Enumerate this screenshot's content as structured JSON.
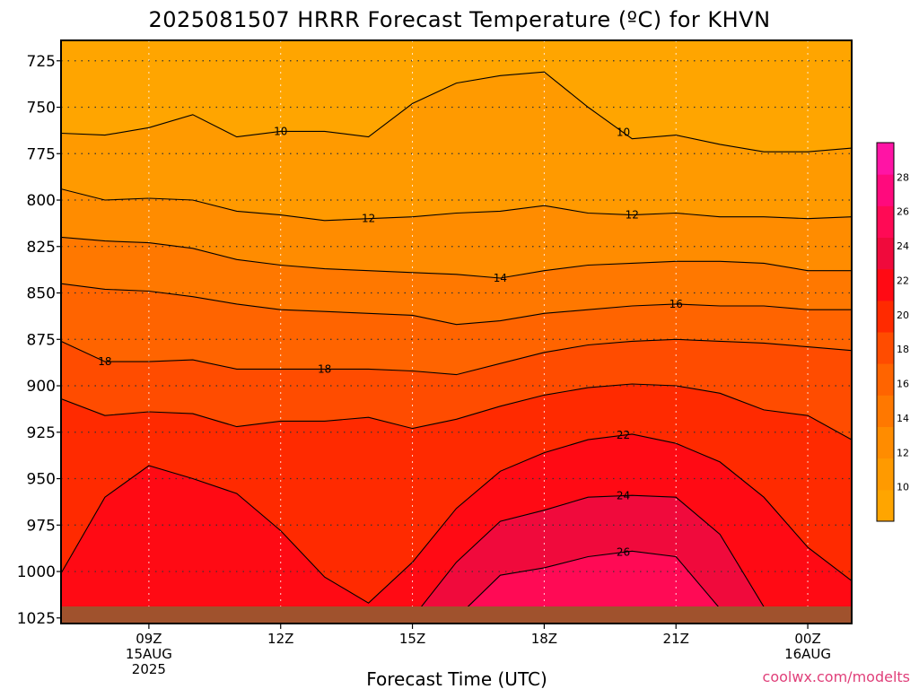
{
  "chart_data": {
    "type": "heatmap",
    "title": "2025081507 HRRR Forecast Temperature (ºC) for KHVN",
    "xlabel": "Forecast Time (UTC)",
    "ylabel": "",
    "credit": "coolwx.com/modelts",
    "x_ticks": [
      {
        "hour": 9,
        "lines": [
          "09Z",
          "15AUG",
          "2025"
        ]
      },
      {
        "hour": 12,
        "lines": [
          "12Z"
        ]
      },
      {
        "hour": 15,
        "lines": [
          "15Z"
        ]
      },
      {
        "hour": 18,
        "lines": [
          "18Z"
        ]
      },
      {
        "hour": 21,
        "lines": [
          "21Z"
        ]
      },
      {
        "hour": 24,
        "lines": [
          "00Z",
          "16AUG"
        ]
      }
    ],
    "xlim_hours": [
      7,
      25
    ],
    "y_ticks": [
      725,
      750,
      775,
      800,
      825,
      850,
      875,
      900,
      925,
      950,
      975,
      1000,
      1025
    ],
    "ylim_hPa": [
      714,
      1028
    ],
    "grid": true,
    "colorbar": {
      "ticks": [
        10,
        12,
        14,
        16,
        18,
        20,
        22,
        24,
        26,
        28
      ],
      "bounds": [
        8,
        30
      ],
      "step": 2,
      "colors": [
        "#ffa500",
        "#ff9a00",
        "#ff8c00",
        "#ff7800",
        "#ff6400",
        "#ff4c00",
        "#ff2a00",
        "#ff0a14",
        "#f00a3c",
        "#ff0a55",
        "#ff0a7d",
        "#ff14a5"
      ]
    },
    "ground_color": "#a0522d",
    "x_hours": [
      7,
      8,
      9,
      10,
      11,
      12,
      13,
      14,
      15,
      16,
      17,
      18,
      19,
      20,
      21,
      22,
      23,
      24,
      25
    ],
    "isotherms": [
      {
        "temp": 10,
        "pressure": [
          764,
          765,
          761,
          754,
          766,
          763,
          763,
          766,
          748,
          737,
          733,
          731,
          750,
          767,
          765,
          770,
          774,
          774,
          772
        ],
        "labels": [
          {
            "hour": 12,
            "text": "10"
          },
          {
            "hour": 19.8,
            "text": "10"
          }
        ]
      },
      {
        "temp": 12,
        "pressure": [
          794,
          800,
          799,
          800,
          806,
          808,
          811,
          810,
          809,
          807,
          806,
          803,
          807,
          808,
          807,
          809,
          809,
          810,
          809
        ],
        "labels": [
          {
            "hour": 14,
            "text": "12"
          },
          {
            "hour": 20,
            "text": "12"
          }
        ]
      },
      {
        "temp": 14,
        "pressure": [
          820,
          822,
          823,
          826,
          832,
          835,
          837,
          838,
          839,
          840,
          842,
          838,
          835,
          834,
          833,
          833,
          834,
          838,
          838
        ],
        "labels": [
          {
            "hour": 17,
            "text": "14"
          }
        ]
      },
      {
        "temp": 16,
        "pressure": [
          845,
          848,
          849,
          852,
          856,
          859,
          860,
          861,
          862,
          867,
          865,
          861,
          859,
          857,
          856,
          857,
          857,
          859,
          859
        ],
        "labels": [
          {
            "hour": 21,
            "text": "16"
          }
        ]
      },
      {
        "temp": 18,
        "pressure": [
          876,
          887,
          887,
          886,
          891,
          891,
          891,
          891,
          892,
          894,
          888,
          882,
          878,
          876,
          875,
          876,
          877,
          879,
          881
        ],
        "labels": [
          {
            "hour": 8,
            "text": "18"
          },
          {
            "hour": 13,
            "text": "18"
          }
        ]
      },
      {
        "temp": 20,
        "pressure": [
          907,
          916,
          914,
          915,
          922,
          919,
          919,
          917,
          923,
          918,
          911,
          905,
          901,
          899,
          900,
          904,
          913,
          916,
          929
        ],
        "labels": []
      },
      {
        "temp": 22,
        "pressure": [
          1001,
          960,
          943,
          950,
          958,
          978,
          1003,
          1017,
          995,
          966,
          946,
          936,
          929,
          926,
          931,
          941,
          960,
          987,
          1005
        ],
        "labels": [
          {
            "hour": 19.8,
            "text": "22"
          }
        ]
      },
      {
        "temp": 24,
        "pressure": [
          null,
          null,
          null,
          null,
          null,
          1025,
          1025,
          1025,
          1025,
          995,
          973,
          967,
          960,
          959,
          960,
          980,
          1019,
          1025,
          1025
        ],
        "labels": [
          {
            "hour": 19.8,
            "text": "24"
          }
        ]
      },
      {
        "temp": 26,
        "pressure": [
          null,
          null,
          null,
          null,
          null,
          null,
          null,
          null,
          null,
          1025,
          1002,
          998,
          992,
          989,
          992,
          1020,
          1025,
          null,
          null
        ],
        "labels": [
          {
            "hour": 19.8,
            "text": "26"
          }
        ]
      },
      {
        "temp": 28,
        "pressure": [
          null,
          null,
          null,
          null,
          null,
          null,
          null,
          null,
          null,
          null,
          null,
          1025,
          1022,
          1022,
          1025,
          null,
          null,
          null,
          null
        ],
        "labels": []
      }
    ]
  }
}
